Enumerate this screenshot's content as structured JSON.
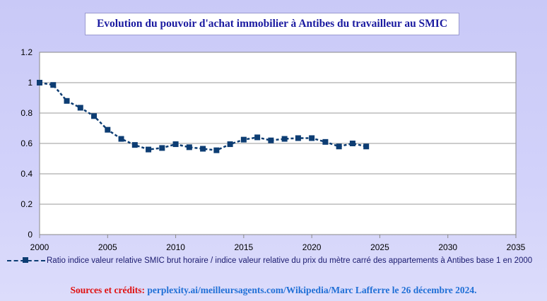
{
  "chart_data": {
    "type": "line",
    "title": "Evolution du pouvoir d'achat immobilier à Antibes du travailleur au SMIC",
    "xlim": [
      2000,
      2035
    ],
    "ylim": [
      0,
      1.2
    ],
    "x_ticks": [
      2000,
      2005,
      2010,
      2015,
      2020,
      2025,
      2030,
      2035
    ],
    "y_ticks": [
      0,
      0.2,
      0.4,
      0.6,
      0.8,
      1,
      1.2
    ],
    "y_tick_labels": [
      "0",
      "0.2",
      "0.4",
      "0.6",
      "0.8",
      "1",
      "1.2"
    ],
    "grid": "horizontal",
    "legend_position": "bottom",
    "series": [
      {
        "name": "Ratio indice valeur relative SMIC brut horaire / indice valeur relative du prix du mètre carré des appartements à Antibes base 1 en 2000",
        "color": "#0d3d73",
        "line_style": "dashed",
        "marker": "square",
        "x": [
          2000,
          2001,
          2002,
          2003,
          2004,
          2005,
          2006,
          2007,
          2008,
          2009,
          2010,
          2011,
          2012,
          2013,
          2014,
          2015,
          2016,
          2017,
          2018,
          2019,
          2020,
          2021,
          2022,
          2023,
          2024
        ],
        "y": [
          1.0,
          0.985,
          0.88,
          0.835,
          0.78,
          0.69,
          0.63,
          0.59,
          0.56,
          0.57,
          0.595,
          0.575,
          0.565,
          0.555,
          0.595,
          0.625,
          0.64,
          0.62,
          0.63,
          0.635,
          0.635,
          0.61,
          0.58,
          0.6,
          0.58
        ]
      }
    ]
  },
  "credits": {
    "label": "Sources et crédits:",
    "text": " perplexity.ai/meilleursagents.com/Wikipedia/Marc Lafferre le 26 décembre 2024"
  }
}
